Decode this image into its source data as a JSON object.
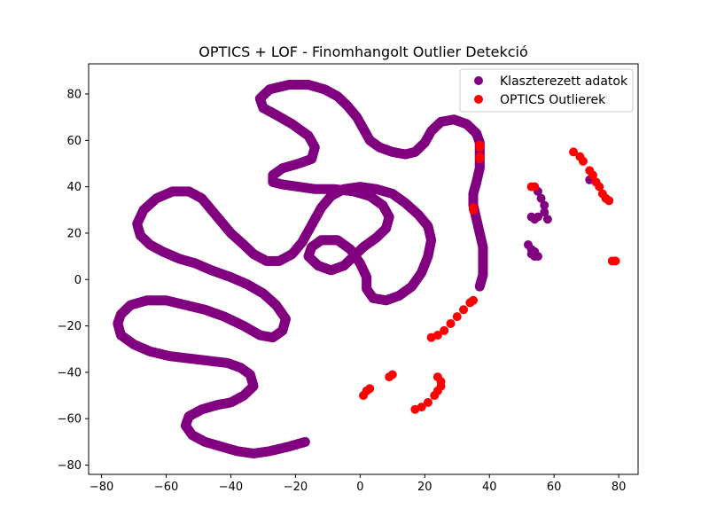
{
  "chart_data": {
    "type": "scatter",
    "title": "OPTICS + LOF - Finomhangolt Outlier Detekció",
    "xlabel": "",
    "ylabel": "",
    "xlim": [
      -84,
      86
    ],
    "ylim": [
      -84,
      93
    ],
    "xticks": [
      -80,
      -60,
      -40,
      -20,
      0,
      20,
      40,
      60,
      80
    ],
    "yticks": [
      -80,
      -60,
      -40,
      -20,
      0,
      20,
      40,
      60,
      80
    ],
    "grid": false,
    "legend_position": "top-right",
    "series": [
      {
        "name": "Klaszterezett adatok",
        "color": "#800080",
        "trace": [
          [
            -17,
            -70
          ],
          [
            -22,
            -72
          ],
          [
            -28,
            -74
          ],
          [
            -33,
            -75
          ],
          [
            -38,
            -74
          ],
          [
            -43,
            -72
          ],
          [
            -48,
            -70
          ],
          [
            -52,
            -67
          ],
          [
            -54,
            -63
          ],
          [
            -53,
            -59
          ],
          [
            -49,
            -56
          ],
          [
            -44,
            -54
          ],
          [
            -40,
            -53
          ],
          [
            -36,
            -50
          ],
          [
            -33,
            -46
          ],
          [
            -34,
            -41
          ],
          [
            -37,
            -38
          ],
          [
            -41,
            -36
          ],
          [
            -47,
            -35
          ],
          [
            -53,
            -34
          ],
          [
            -59,
            -33
          ],
          [
            -65,
            -31
          ],
          [
            -70,
            -28
          ],
          [
            -74,
            -24
          ],
          [
            -75,
            -19
          ],
          [
            -74,
            -15
          ],
          [
            -71,
            -11
          ],
          [
            -66,
            -9
          ],
          [
            -60,
            -9
          ],
          [
            -54,
            -11
          ],
          [
            -48,
            -13
          ],
          [
            -42,
            -16
          ],
          [
            -36,
            -20
          ],
          [
            -31,
            -24
          ],
          [
            -27,
            -25
          ],
          [
            -24,
            -22
          ],
          [
            -23,
            -17
          ],
          [
            -26,
            -11
          ],
          [
            -30,
            -6
          ],
          [
            -35,
            -2
          ],
          [
            -40,
            1
          ],
          [
            -46,
            4
          ],
          [
            -51,
            7
          ],
          [
            -56,
            9
          ],
          [
            -61,
            12
          ],
          [
            -65,
            15
          ],
          [
            -68,
            19
          ],
          [
            -69,
            24
          ],
          [
            -67,
            30
          ],
          [
            -63,
            35
          ],
          [
            -58,
            38
          ],
          [
            -53,
            38
          ],
          [
            -49,
            35
          ],
          [
            -46,
            30
          ],
          [
            -43,
            25
          ],
          [
            -40,
            20
          ],
          [
            -36,
            15
          ],
          [
            -33,
            11
          ],
          [
            -29,
            8
          ],
          [
            -25,
            8
          ],
          [
            -21,
            11
          ],
          [
            -18,
            16
          ],
          [
            -16,
            21
          ],
          [
            -14,
            26
          ],
          [
            -12,
            31
          ],
          [
            -9,
            36
          ],
          [
            -5,
            39
          ],
          [
            0,
            40
          ],
          [
            5,
            39
          ],
          [
            10,
            37
          ],
          [
            14,
            33
          ],
          [
            18,
            28
          ],
          [
            21,
            23
          ],
          [
            22,
            17
          ],
          [
            21,
            10
          ],
          [
            19,
            3
          ],
          [
            16,
            -3
          ],
          [
            12,
            -7
          ],
          [
            8,
            -9
          ],
          [
            4,
            -8
          ],
          [
            2,
            -4
          ],
          [
            2,
            1
          ],
          [
            0,
            7
          ],
          [
            -3,
            13
          ],
          [
            -7,
            17
          ],
          [
            -12,
            17
          ],
          [
            -15,
            14
          ],
          [
            -16,
            10
          ],
          [
            -13,
            6
          ],
          [
            -9,
            4
          ],
          [
            -5,
            6
          ],
          [
            -2,
            10
          ],
          [
            1,
            14
          ],
          [
            5,
            18
          ],
          [
            8,
            22
          ],
          [
            9,
            27
          ],
          [
            7,
            32
          ],
          [
            3,
            36
          ],
          [
            -2,
            38
          ],
          [
            -8,
            39
          ],
          [
            -14,
            39
          ],
          [
            -19,
            40
          ],
          [
            -24,
            41
          ],
          [
            -27,
            42
          ],
          [
            -27,
            45
          ],
          [
            -24,
            48
          ],
          [
            -19,
            50
          ],
          [
            -15,
            52
          ],
          [
            -14,
            57
          ],
          [
            -16,
            62
          ],
          [
            -21,
            67
          ],
          [
            -26,
            71
          ],
          [
            -30,
            74
          ],
          [
            -31,
            78
          ],
          [
            -28,
            82
          ],
          [
            -22,
            84
          ],
          [
            -16,
            84
          ],
          [
            -11,
            82
          ],
          [
            -7,
            79
          ],
          [
            -4,
            75
          ],
          [
            -1,
            70
          ],
          [
            1,
            65
          ],
          [
            3,
            60
          ],
          [
            6,
            57
          ],
          [
            10,
            55
          ],
          [
            14,
            54
          ],
          [
            17,
            55
          ],
          [
            20,
            59
          ],
          [
            22,
            64
          ],
          [
            25,
            68
          ],
          [
            29,
            69
          ],
          [
            33,
            67
          ],
          [
            36,
            63
          ],
          [
            37,
            59
          ],
          [
            37,
            54
          ],
          [
            37,
            48
          ],
          [
            36,
            42
          ],
          [
            35,
            37
          ],
          [
            35,
            32
          ],
          [
            36,
            26
          ],
          [
            37,
            20
          ],
          [
            38,
            14
          ],
          [
            38,
            8
          ],
          [
            38,
            2
          ],
          [
            37,
            -3
          ]
        ],
        "blobs": [
          [
            55,
            38
          ],
          [
            56,
            35
          ],
          [
            57,
            32
          ],
          [
            57,
            29
          ],
          [
            58,
            26
          ],
          [
            53,
            27
          ],
          [
            54,
            26
          ],
          [
            55,
            27
          ],
          [
            52,
            15
          ],
          [
            53,
            13
          ],
          [
            54,
            12
          ],
          [
            53,
            11
          ],
          [
            54,
            10
          ],
          [
            55,
            10
          ],
          [
            71,
            43
          ]
        ]
      },
      {
        "name": "OPTICS Outlierek",
        "color": "#ff0000",
        "trace": [
          [
            37,
            58
          ],
          [
            37,
            57
          ],
          [
            37,
            53
          ],
          [
            37,
            52
          ],
          [
            35,
            31
          ],
          [
            35,
            30
          ],
          [
            35,
            -9
          ],
          [
            34,
            -10
          ],
          [
            32,
            -13
          ],
          [
            30,
            -16
          ],
          [
            28,
            -19
          ],
          [
            26,
            -22
          ],
          [
            24,
            -24
          ],
          [
            22,
            -25
          ],
          [
            1,
            -50
          ],
          [
            2,
            -48
          ],
          [
            3,
            -47
          ],
          [
            9,
            -42
          ],
          [
            10,
            -41
          ],
          [
            17,
            -56
          ],
          [
            19,
            -55
          ],
          [
            21,
            -53
          ],
          [
            23,
            -50
          ],
          [
            24,
            -48
          ],
          [
            25,
            -46
          ],
          [
            25,
            -44
          ],
          [
            24,
            -42
          ],
          [
            53,
            40
          ],
          [
            54,
            40
          ],
          [
            66,
            55
          ],
          [
            68,
            53
          ],
          [
            69,
            51
          ],
          [
            71,
            47
          ],
          [
            72,
            45
          ],
          [
            73,
            42
          ],
          [
            74,
            40
          ],
          [
            75,
            37
          ],
          [
            76,
            35
          ],
          [
            77,
            34
          ],
          [
            78,
            8
          ],
          [
            79,
            8
          ]
        ]
      }
    ],
    "legend": {
      "entries": [
        "Klaszterezett adatok",
        "OPTICS Outlierek"
      ]
    }
  }
}
